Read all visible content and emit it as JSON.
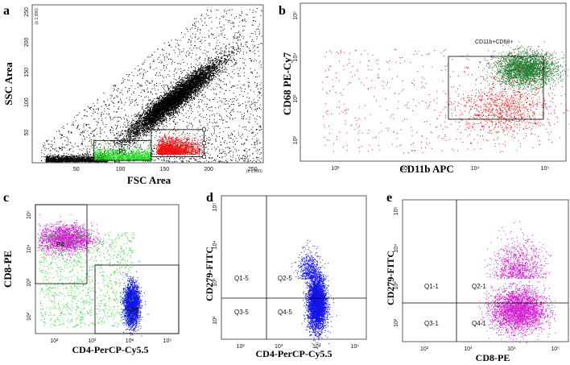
{
  "chart_data": [
    {
      "panel": "a",
      "type": "scatter",
      "xlabel": "FSC Area",
      "ylabel": "SSC Area",
      "x_ticks": [
        "50",
        "100",
        "150",
        "200",
        "250"
      ],
      "y_ticks": [
        "50",
        "100",
        "150",
        "200",
        "250"
      ],
      "x_unit": "(x 1,000)",
      "y_unit": "(x 1,000)",
      "xlim": [
        0,
        262
      ],
      "ylim": [
        0,
        262
      ],
      "gates": [
        {
          "name": "P2",
          "x": [
            70,
            135
          ],
          "y": [
            4,
            37
          ],
          "color": "#22dd22"
        },
        {
          "name": "P3",
          "x": [
            135,
            195
          ],
          "y": [
            10,
            55
          ],
          "color": "#ee1111"
        }
      ],
      "cloud_center": [
        160,
        110
      ]
    },
    {
      "panel": "b",
      "type": "scatter",
      "xlabel": "CD11b APC",
      "ylabel": "CD68 PE-Cy7",
      "x_ticks": [
        "10²",
        "10³",
        "10⁴",
        "10⁵"
      ],
      "y_ticks": [
        "10²",
        "10³",
        "10⁴",
        "10⁵"
      ],
      "gate_label": "CD11b+CD68+",
      "xlim": [
        1.5,
        5.3
      ],
      "ylim": [
        1.5,
        5.3
      ]
    },
    {
      "panel": "c",
      "type": "scatter",
      "xlabel": "CD4-PerCP-Cy5.5",
      "ylabel": "CD8-PE",
      "x_ticks": [
        "10²",
        "10³",
        "10⁴",
        "10⁵"
      ],
      "y_ticks": [
        "10²",
        "10³",
        "10⁴",
        "10⁵"
      ],
      "gates": [
        "P4",
        "P3"
      ],
      "xlim": [
        1.5,
        5.3
      ],
      "ylim": [
        1.5,
        5.3
      ]
    },
    {
      "panel": "d",
      "type": "scatter",
      "xlabel": "CD4-PerCP-Cy5.5",
      "ylabel": "CD279-FITC",
      "x_ticks": [
        "10²",
        "10³",
        "10⁴",
        "10⁵"
      ],
      "y_ticks": [
        "10²",
        "10³",
        "10⁴",
        "10⁵"
      ],
      "quadrants": [
        "Q1-5",
        "Q2-5",
        "Q3-5",
        "Q4-5"
      ],
      "xlim": [
        1.5,
        5.3
      ],
      "ylim": [
        1.5,
        5.3
      ]
    },
    {
      "panel": "e",
      "type": "scatter",
      "xlabel": "CD8-PE",
      "ylabel": "CD279-FITC",
      "x_ticks": [
        "10²",
        "10³",
        "10⁴",
        "10⁵"
      ],
      "y_ticks": [
        "10²",
        "10³",
        "10⁴",
        "10⁵"
      ],
      "quadrants": [
        "Q1-1",
        "Q2-1",
        "Q3-1",
        "Q4-1"
      ],
      "xlim": [
        1.5,
        5.3
      ],
      "ylim": [
        1.5,
        5.3
      ]
    }
  ],
  "colors": {
    "black": "#000000",
    "red": "#ee1111",
    "green": "#22dd22",
    "darkgreen": "#1c7a2c",
    "magenta": "#d21fd2",
    "blue": "#1414e6"
  }
}
